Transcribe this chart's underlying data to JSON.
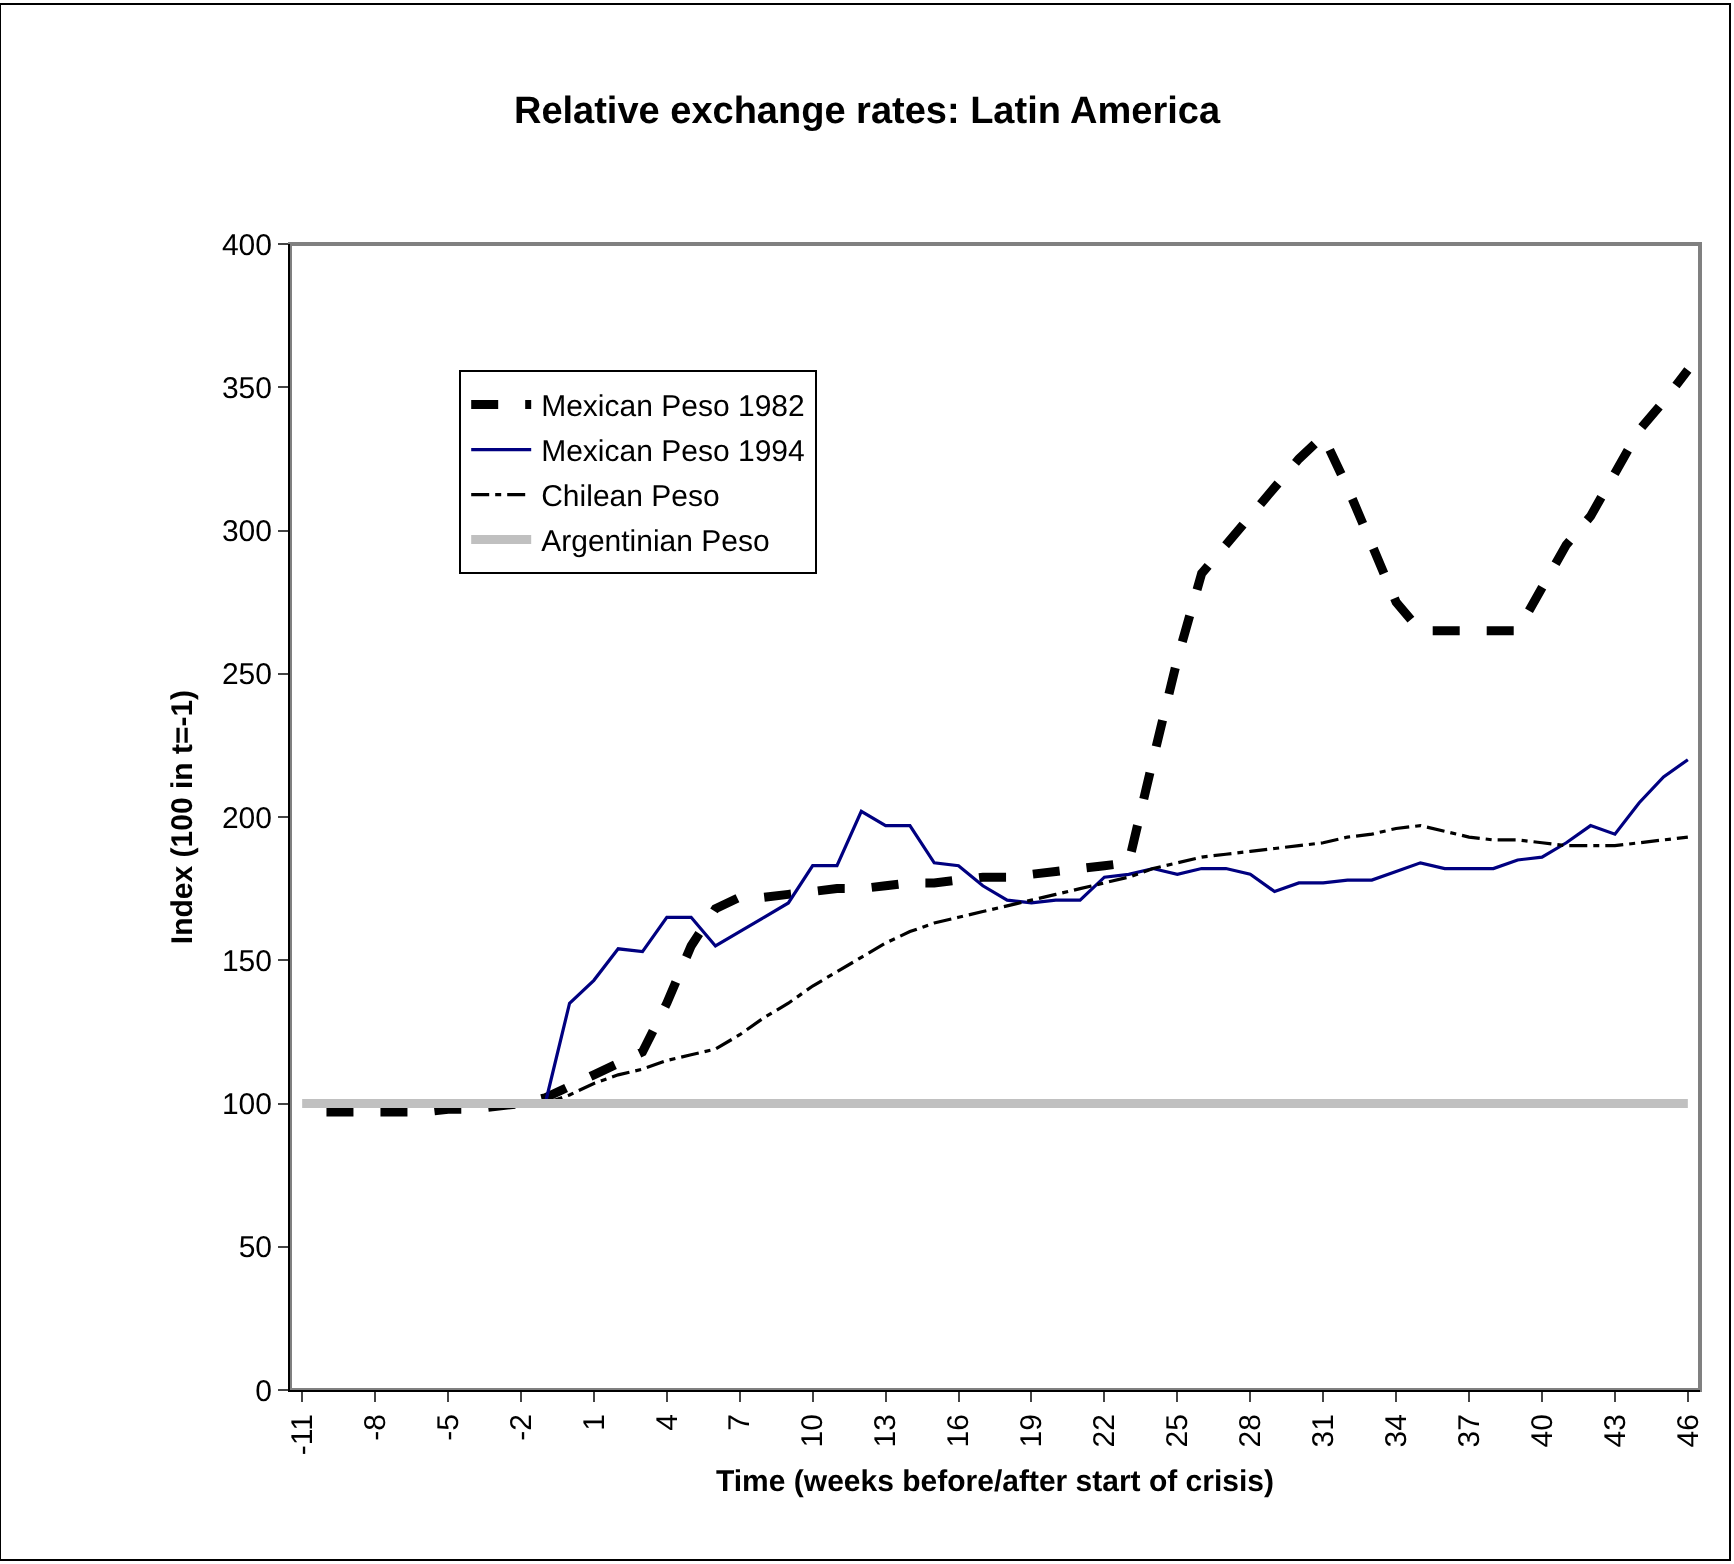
{
  "chart_data": {
    "type": "line",
    "title": "Relative exchange rates: Latin America",
    "xlabel": "Time (weeks before/after start of crisis)",
    "ylabel": "Index (100 in t=-1)",
    "x": [
      -11,
      -10,
      -9,
      -8,
      -7,
      -6,
      -5,
      -4,
      -3,
      -2,
      -1,
      0,
      1,
      2,
      3,
      4,
      5,
      6,
      7,
      8,
      9,
      10,
      11,
      12,
      13,
      14,
      15,
      16,
      17,
      18,
      19,
      20,
      21,
      22,
      23,
      24,
      25,
      26,
      27,
      28,
      29,
      30,
      31,
      32,
      33,
      34,
      35,
      36,
      37,
      38,
      39,
      40,
      41,
      42,
      43,
      44,
      45,
      46
    ],
    "series": [
      {
        "name": "Mexican Peso 1982",
        "color": "#000000",
        "line_style": "dashed",
        "values": [
          null,
          97,
          97,
          97,
          97,
          97,
          98,
          98,
          99,
          100,
          102,
          106,
          110,
          114,
          118,
          135,
          155,
          168,
          172,
          172,
          173,
          174,
          175,
          175,
          176,
          177,
          177,
          178,
          179,
          179,
          180,
          181,
          182,
          183,
          184,
          220,
          255,
          285,
          295,
          305,
          315,
          325,
          333,
          315,
          295,
          275,
          265,
          265,
          265,
          265,
          265,
          280,
          295,
          305,
          320,
          335,
          345,
          356
        ]
      },
      {
        "name": "Mexican Peso 1994",
        "color": "#000080",
        "line_style": "solid",
        "values": [
          null,
          null,
          null,
          null,
          null,
          null,
          null,
          null,
          null,
          null,
          100,
          135,
          143,
          154,
          153,
          165,
          165,
          155,
          160,
          165,
          170,
          183,
          183,
          202,
          197,
          197,
          184,
          183,
          176,
          171,
          170,
          171,
          171,
          179,
          180,
          182,
          180,
          182,
          182,
          180,
          174,
          177,
          177,
          178,
          178,
          181,
          184,
          182,
          182,
          182,
          185,
          186,
          191,
          197,
          194,
          205,
          214,
          220
        ]
      },
      {
        "name": "Chilean Peso",
        "color": "#000000",
        "line_style": "dashdot",
        "values": [
          null,
          null,
          null,
          null,
          null,
          null,
          null,
          null,
          null,
          null,
          100,
          103,
          107,
          110,
          112,
          115,
          117,
          119,
          124,
          130,
          135,
          141,
          146,
          151,
          156,
          160,
          163,
          165,
          167,
          169,
          171,
          173,
          175,
          177,
          179,
          182,
          184,
          186,
          187,
          188,
          189,
          190,
          191,
          193,
          194,
          196,
          197,
          195,
          193,
          192,
          192,
          191,
          190,
          190,
          190,
          191,
          192,
          193
        ]
      },
      {
        "name": "Argentinian Peso",
        "color": "#c0c0c0",
        "line_style": "solid",
        "values": [
          100,
          100,
          100,
          100,
          100,
          100,
          100,
          100,
          100,
          100,
          100,
          100,
          100,
          100,
          100,
          100,
          100,
          100,
          100,
          100,
          100,
          100,
          100,
          100,
          100,
          100,
          100,
          100,
          100,
          100,
          100,
          100,
          100,
          100,
          100,
          100,
          100,
          100,
          100,
          100,
          100,
          100,
          100,
          100,
          100,
          100,
          100,
          100,
          100,
          100,
          100,
          100,
          100,
          100,
          100,
          100,
          100,
          100
        ]
      }
    ],
    "xlim": [
      -11.5,
      46.5
    ],
    "xticks": [
      -11,
      -8,
      -5,
      -2,
      1,
      4,
      7,
      10,
      13,
      16,
      19,
      22,
      25,
      28,
      31,
      34,
      37,
      40,
      43,
      46
    ],
    "ylim": [
      0,
      400
    ],
    "yticks": [
      0,
      50,
      100,
      150,
      200,
      250,
      300,
      350,
      400
    ],
    "grid": false,
    "legend": "top left",
    "marker": "none"
  }
}
